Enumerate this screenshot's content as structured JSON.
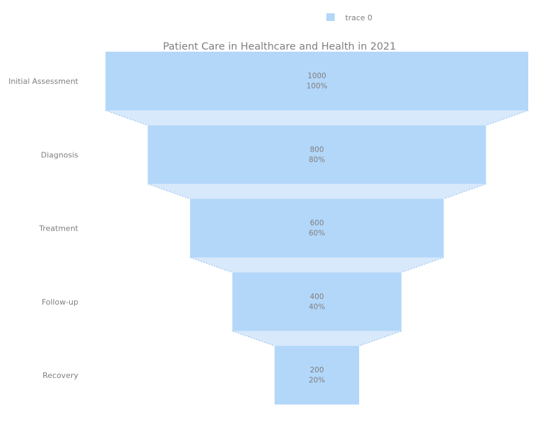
{
  "chart_data": {
    "type": "funnel",
    "title": "Patient Care in Healthcare and Health in 2021",
    "stages": [
      "Initial Assessment",
      "Diagnosis",
      "Treatment",
      "Follow-up",
      "Recovery"
    ],
    "values": [
      1000,
      800,
      600,
      400,
      200
    ],
    "percent_labels": [
      "100%",
      "80%",
      "60%",
      "40%",
      "20%"
    ],
    "series": [
      {
        "name": "trace 0",
        "values": [
          1000,
          800,
          600,
          400,
          200
        ]
      }
    ],
    "legend": {
      "position": "top",
      "entries": [
        "trace 0"
      ]
    },
    "colors": {
      "bar": "#b3d7f9",
      "connector": "#d8e9fb",
      "connector_line": "#a9cdf3",
      "text": "#7f7f7f"
    }
  }
}
